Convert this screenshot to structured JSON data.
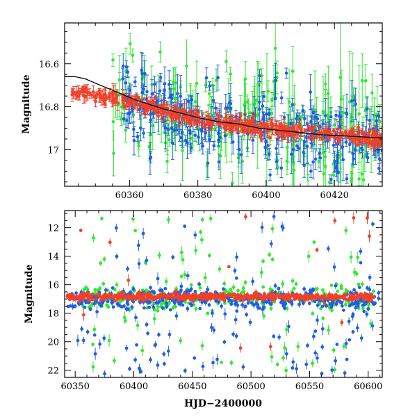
{
  "colors": {
    "green": "#33e633",
    "blue": "#1f5fe0",
    "red": "#f0402a",
    "model": "#000000"
  },
  "chart_data": [
    {
      "type": "scatter",
      "title": "",
      "xlabel": "",
      "ylabel": "Magnitude",
      "xlim": [
        60341,
        60434
      ],
      "ylim": [
        17.17,
        16.41
      ],
      "y_inverted": true,
      "xticks": [
        60360,
        60380,
        60400,
        60420
      ],
      "xtick_labels": [
        "60360",
        "60380",
        "60400",
        "60420"
      ],
      "yticks": [
        16.6,
        16.8,
        17.0
      ],
      "ytick_labels": [
        "16.6",
        "16.8",
        "17"
      ],
      "model_curve": {
        "x": [
          60341,
          60344,
          60347,
          60350,
          60353,
          60356,
          60359,
          60362,
          60366,
          60370,
          60375,
          60380,
          60386,
          60392,
          60398,
          60404,
          60410,
          60416,
          60422,
          60428,
          60434
        ],
        "y": [
          16.66,
          16.66,
          16.67,
          16.69,
          16.71,
          16.73,
          16.75,
          16.77,
          16.79,
          16.81,
          16.83,
          16.85,
          16.87,
          16.88,
          16.9,
          16.91,
          16.92,
          16.93,
          16.935,
          16.94,
          16.945
        ]
      },
      "series": [
        {
          "color_key": "green",
          "base": [
            [
              60355,
              16.74
            ],
            [
              60375,
              16.84
            ],
            [
              60400,
              16.9
            ],
            [
              60434,
              16.96
            ]
          ],
          "scatter_sd": 0.13,
          "err": [
            0.03,
            0.15
          ],
          "xrange": [
            60355,
            60434
          ],
          "n": 230
        },
        {
          "color_key": "blue",
          "base": [
            [
              60355,
              16.74
            ],
            [
              60375,
              16.84
            ],
            [
              60400,
              16.9
            ],
            [
              60434,
              16.96
            ]
          ],
          "scatter_sd": 0.08,
          "err": [
            0.02,
            0.1
          ],
          "xrange": [
            60358,
            60434
          ],
          "n": 300
        },
        {
          "color_key": "red",
          "base": [
            [
              60343,
              16.73
            ],
            [
              60350,
              16.75
            ],
            [
              60360,
              16.77
            ],
            [
              60375,
              16.84
            ],
            [
              60390,
              16.88
            ],
            [
              60400,
              16.9
            ],
            [
              60420,
              16.93
            ],
            [
              60434,
              16.95
            ]
          ],
          "scatter_sd": 0.015,
          "err": [
            0.01,
            0.04
          ],
          "xrange": [
            60343,
            60434
          ],
          "n": 420
        }
      ]
    },
    {
      "type": "scatter",
      "title": "",
      "xlabel": "HJD−2400000",
      "ylabel": "Magnitude",
      "xlim": [
        60341,
        60612
      ],
      "ylim": [
        22.5,
        10.8
      ],
      "y_inverted": true,
      "xticks": [
        60350,
        60400,
        60450,
        60500,
        60550,
        60600
      ],
      "xtick_labels": [
        "60350",
        "60400",
        "60450",
        "60500",
        "60550",
        "60600"
      ],
      "yticks": [
        12,
        14,
        16,
        18,
        20,
        22
      ],
      "ytick_labels": [
        "12",
        "14",
        "16",
        "18",
        "20",
        "22"
      ],
      "series": [
        {
          "color_key": "green",
          "core_mag": 16.9,
          "core_sd": 0.45,
          "xrange": [
            60355,
            60605
          ],
          "n_core": 260,
          "n_out": 70
        },
        {
          "color_key": "blue",
          "core_mag": 17.0,
          "core_sd": 0.35,
          "xrange": [
            60343,
            60610
          ],
          "n_core": 380,
          "n_out": 110
        },
        {
          "color_key": "red",
          "core_mag": 16.85,
          "core_sd": 0.12,
          "xrange": [
            60343,
            60605
          ],
          "n_core": 520,
          "n_out": 14
        }
      ]
    }
  ]
}
